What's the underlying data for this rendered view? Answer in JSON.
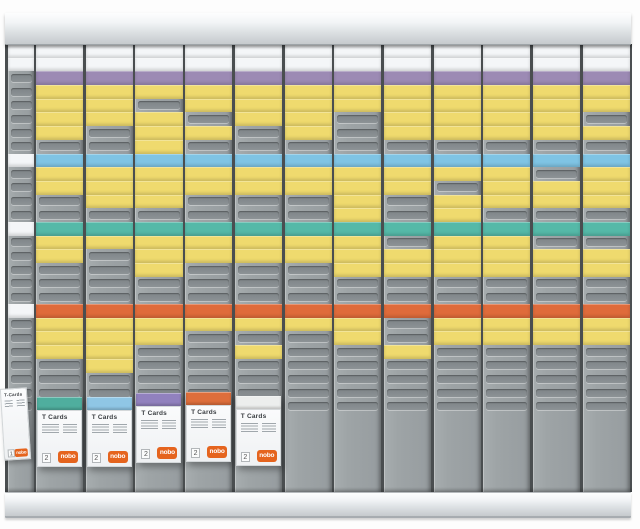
{
  "board": {
    "rows": 27,
    "legend": {
      "W": "white card",
      "P": "purple card",
      "Y": "yellow card",
      "C": "cyan card",
      "T": "teal card",
      "O": "orange card",
      "_": "empty slot"
    },
    "index_column": {
      "pattern": "WW______W____W_____W_______"
    },
    "columns": [
      {
        "pattern": "WWPYYYY_CYY__TYY___OYYY____"
      },
      {
        "pattern": "WWPYYY__CYYY_TY____OYYYY___"
      },
      {
        "pattern": "WWPY_YYYCYYY_TYYY__OYY_____"
      },
      {
        "pattern": "WWPYY_Y_CYY__TYY___OY______"
      },
      {
        "pattern": "WWPYYY__CYY__TYY___OY_Y____"
      },
      {
        "pattern": "WWPYYYY_CYY__TYY___OY______"
      },
      {
        "pattern": "WWPYY___CYYYYTYYY__OYY_____"
      },
      {
        "pattern": "WWPYYYY_CYY__T_YY__O__Y____"
      },
      {
        "pattern": "WWPYYYY_CY_YYTYYY__OYY_____"
      },
      {
        "pattern": "WWPYYYY_CYYY_TYYY__OYY_____"
      },
      {
        "pattern": "WWPYYYY_C_YY_T_YY__OYY_____"
      },
      {
        "pattern": "WWPYY_Y_CYYY_T_YY__OYY_____"
      }
    ]
  },
  "colors": {
    "card_white": "#F4F6F8",
    "card_purple": "#9C8AB4",
    "card_yellow": "#EFDA6E",
    "card_cyan": "#7FC4E4",
    "card_teal": "#55B9A8",
    "card_orange": "#DF6B3B",
    "panel": "#9EA4A6",
    "rail": "#DCE0E3",
    "nobo_orange": "#E5641E"
  },
  "packs": {
    "card_packs": [
      {
        "title": "T Cards",
        "badge": "2",
        "brand": "nobo",
        "top_color": "#4FAE9E"
      },
      {
        "title": "T Cards",
        "badge": "2",
        "brand": "nobo",
        "top_color": "#8FC6E5"
      },
      {
        "title": "T Cards",
        "badge": "2",
        "brand": "nobo",
        "top_color": "#9181BE"
      },
      {
        "title": "T Cards",
        "badge": "2",
        "brand": "nobo",
        "top_color": "#DE6E3C"
      },
      {
        "title": "T Cards",
        "badge": "2",
        "brand": "nobo",
        "top_color": "#ECEEED"
      }
    ],
    "small_pack": {
      "title": "T-Cards",
      "badge": "1",
      "brand": "nobo"
    }
  }
}
